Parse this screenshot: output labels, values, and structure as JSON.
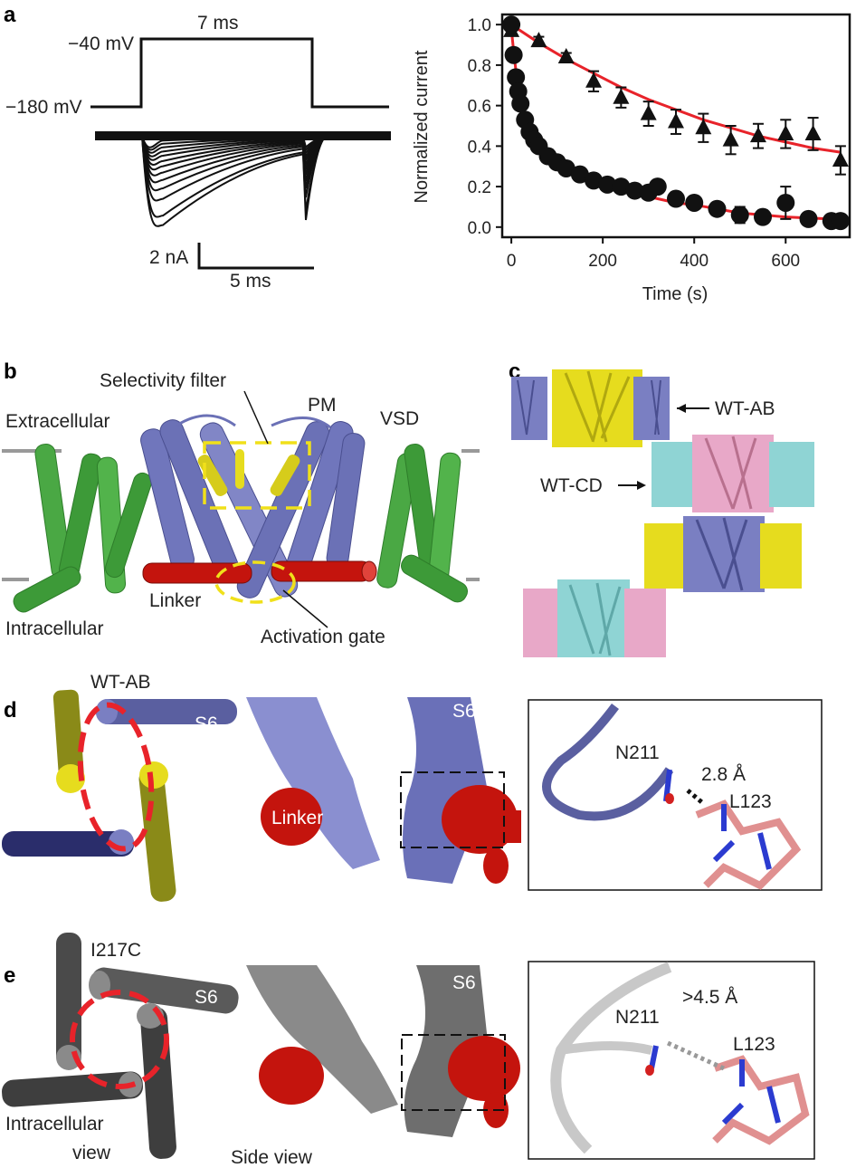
{
  "panels": {
    "a": {
      "label": "a",
      "protocol": {
        "duration": "7 ms",
        "v_hold": "−180 mV",
        "v_step": "−40 mV"
      },
      "scalebar": {
        "current": "2 nA",
        "time": "5 ms"
      }
    },
    "b": {
      "label": "b",
      "labels": {
        "selectivity_filter": "Selectivity filter",
        "pm": "PM",
        "vsd": "VSD",
        "extracellular": "Extracellular",
        "intracellular": "Intracellular",
        "linker": "Linker",
        "activation_gate": "Activation gate"
      }
    },
    "c": {
      "label": "c",
      "labels": {
        "wt_ab": "WT-AB",
        "wt_cd": "WT-CD"
      }
    },
    "d": {
      "label": "d",
      "labels": {
        "title": "WT-AB",
        "s6_left": "S6",
        "linker": "Linker",
        "s6_mid": "S6",
        "residue_n": "N211",
        "distance": "2.8 Å",
        "residue_l": "L123"
      }
    },
    "e": {
      "label": "e",
      "labels": {
        "title": "I217C",
        "s6_left": "S6",
        "s6_mid": "S6",
        "intracellular_line1": "Intracellular",
        "intracellular_line2": "view",
        "side_view": "Side view",
        "residue_n": "N211",
        "distance": ">4.5 Å",
        "residue_l": "L123"
      }
    }
  },
  "colors": {
    "fit": "#e8232a",
    "blue": "#6f74b8",
    "green": "#3fa83a",
    "red": "#c4140d",
    "yellow": "#e6dc1e",
    "cyan": "#8fd4d4",
    "pink": "#e8a8c8",
    "grey": "#6b6b6b"
  },
  "chart_data": {
    "type": "scatter",
    "xlabel": "Time (s)",
    "ylabel": "Normalized current",
    "xlim": [
      -20,
      740
    ],
    "ylim": [
      -0.05,
      1.05
    ],
    "xticks": [
      "0",
      "200",
      "400",
      "600"
    ],
    "yticks": [
      "0.0",
      "0.2",
      "0.4",
      "0.6",
      "0.8",
      "1.0"
    ],
    "grid": false,
    "series": [
      {
        "marker": "triangle",
        "x": [
          0,
          60,
          120,
          180,
          240,
          300,
          360,
          420,
          480,
          540,
          600,
          660,
          720
        ],
        "y": [
          0.97,
          0.92,
          0.84,
          0.72,
          0.64,
          0.56,
          0.52,
          0.49,
          0.43,
          0.45,
          0.46,
          0.46,
          0.33
        ],
        "err": [
          0.0,
          0.02,
          0.02,
          0.05,
          0.05,
          0.06,
          0.06,
          0.07,
          0.07,
          0.06,
          0.07,
          0.08,
          0.07
        ],
        "fit_y": [
          1.0,
          0.91,
          0.83,
          0.76,
          0.69,
          0.63,
          0.58,
          0.53,
          0.49,
          0.45,
          0.42,
          0.39,
          0.37
        ]
      },
      {
        "marker": "circle",
        "x": [
          0,
          5,
          10,
          15,
          20,
          30,
          40,
          50,
          60,
          80,
          100,
          120,
          150,
          180,
          210,
          240,
          270,
          300,
          320,
          360,
          400,
          450,
          500,
          550,
          600,
          650,
          700,
          720
        ],
        "y": [
          1.0,
          0.85,
          0.74,
          0.67,
          0.61,
          0.53,
          0.47,
          0.43,
          0.4,
          0.35,
          0.32,
          0.29,
          0.26,
          0.23,
          0.21,
          0.2,
          0.18,
          0.17,
          0.2,
          0.14,
          0.12,
          0.09,
          0.06,
          0.05,
          0.12,
          0.04,
          0.03,
          0.03
        ],
        "err": [
          0,
          0,
          0,
          0,
          0,
          0,
          0,
          0,
          0,
          0,
          0,
          0,
          0,
          0,
          0,
          0,
          0,
          0,
          0.03,
          0,
          0,
          0,
          0.04,
          0,
          0.08,
          0,
          0,
          0
        ],
        "fit_y": [
          0.98,
          0.87,
          0.77,
          0.69,
          0.63,
          0.54,
          0.48,
          0.44,
          0.41,
          0.36,
          0.33,
          0.31,
          0.27,
          0.24,
          0.21,
          0.19,
          0.17,
          0.15,
          0.14,
          0.12,
          0.11,
          0.09,
          0.07,
          0.06,
          0.05,
          0.045,
          0.04,
          0.035
        ]
      }
    ]
  }
}
